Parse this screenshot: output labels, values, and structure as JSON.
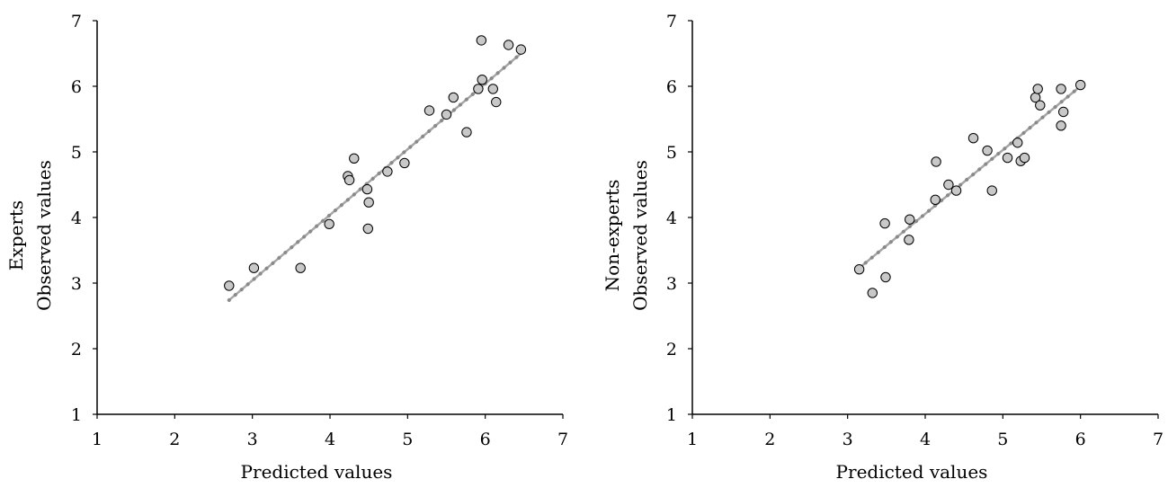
{
  "chart_data": [
    {
      "type": "scatter",
      "title": "",
      "xlabel": "Predicted values",
      "ylabel_lines": [
        "Experts",
        "Observed values"
      ],
      "xlim": [
        1,
        7
      ],
      "ylim": [
        1,
        7
      ],
      "xticks": [
        1,
        2,
        3,
        4,
        5,
        6,
        7
      ],
      "yticks": [
        1,
        2,
        3,
        4,
        5,
        6,
        7
      ],
      "grid": false,
      "legend": "none",
      "point_color": "#c8c8c8",
      "trend_color": "#a6a6a6",
      "trend_line": {
        "x": [
          2.7,
          6.5
        ],
        "y": [
          2.74,
          6.54
        ]
      },
      "points": [
        {
          "x": 2.7,
          "y": 2.96
        },
        {
          "x": 3.02,
          "y": 3.23
        },
        {
          "x": 3.62,
          "y": 3.23
        },
        {
          "x": 3.99,
          "y": 3.9
        },
        {
          "x": 4.23,
          "y": 4.63
        },
        {
          "x": 4.25,
          "y": 4.57
        },
        {
          "x": 4.31,
          "y": 4.9
        },
        {
          "x": 4.48,
          "y": 4.43
        },
        {
          "x": 4.5,
          "y": 4.23
        },
        {
          "x": 4.49,
          "y": 3.83
        },
        {
          "x": 4.74,
          "y": 4.7
        },
        {
          "x": 4.96,
          "y": 4.83
        },
        {
          "x": 5.28,
          "y": 5.63
        },
        {
          "x": 5.5,
          "y": 5.57
        },
        {
          "x": 5.59,
          "y": 5.83
        },
        {
          "x": 5.76,
          "y": 5.3
        },
        {
          "x": 5.91,
          "y": 5.96
        },
        {
          "x": 5.95,
          "y": 6.7
        },
        {
          "x": 5.96,
          "y": 6.1
        },
        {
          "x": 6.1,
          "y": 5.96
        },
        {
          "x": 6.14,
          "y": 5.76
        },
        {
          "x": 6.3,
          "y": 6.63
        },
        {
          "x": 6.46,
          "y": 6.56
        }
      ]
    },
    {
      "type": "scatter",
      "title": "",
      "xlabel": "Predicted values",
      "ylabel_lines": [
        "Non-experts",
        "Observed values"
      ],
      "xlim": [
        1,
        7
      ],
      "ylim": [
        1,
        7
      ],
      "xticks": [
        1,
        2,
        3,
        4,
        5,
        6,
        7
      ],
      "yticks": [
        1,
        2,
        3,
        4,
        5,
        6,
        7
      ],
      "grid": false,
      "legend": "none",
      "point_color": "#c8c8c8",
      "trend_color": "#a6a6a6",
      "trend_line": {
        "x": [
          3.15,
          6.0
        ],
        "y": [
          3.23,
          6.0
        ]
      },
      "points": [
        {
          "x": 3.15,
          "y": 3.21
        },
        {
          "x": 3.32,
          "y": 2.85
        },
        {
          "x": 3.48,
          "y": 3.91
        },
        {
          "x": 3.49,
          "y": 3.09
        },
        {
          "x": 3.8,
          "y": 3.97
        },
        {
          "x": 3.79,
          "y": 3.66
        },
        {
          "x": 4.13,
          "y": 4.27
        },
        {
          "x": 4.14,
          "y": 4.85
        },
        {
          "x": 4.3,
          "y": 4.5
        },
        {
          "x": 4.4,
          "y": 4.41
        },
        {
          "x": 4.62,
          "y": 5.21
        },
        {
          "x": 4.8,
          "y": 5.02
        },
        {
          "x": 4.86,
          "y": 4.41
        },
        {
          "x": 5.06,
          "y": 4.91
        },
        {
          "x": 5.19,
          "y": 5.14
        },
        {
          "x": 5.23,
          "y": 4.86
        },
        {
          "x": 5.28,
          "y": 4.91
        },
        {
          "x": 5.42,
          "y": 5.83
        },
        {
          "x": 5.45,
          "y": 5.96
        },
        {
          "x": 5.48,
          "y": 5.71
        },
        {
          "x": 5.75,
          "y": 5.96
        },
        {
          "x": 5.75,
          "y": 5.4
        },
        {
          "x": 5.78,
          "y": 5.61
        },
        {
          "x": 6.0,
          "y": 6.02
        }
      ]
    }
  ]
}
